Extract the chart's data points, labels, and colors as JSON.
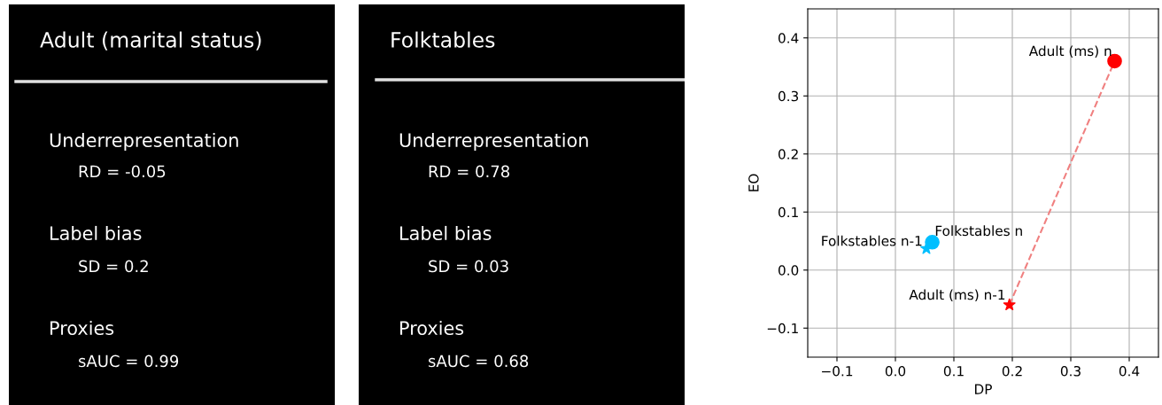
{
  "chart_data": [
    {
      "type": "other",
      "title": "Adult (marital status)",
      "annotations": [
        "Underrepresentation",
        "RD = -0.05",
        "Label bias",
        "SD = 0.2",
        "Proxies",
        "sAUC = 0.99"
      ]
    },
    {
      "type": "other",
      "title": "Folktables",
      "annotations": [
        "Underrepresentation",
        "RD = 0.78",
        "Label bias",
        "SD = 0.03",
        "Proxies",
        "sAUC = 0.68"
      ]
    },
    {
      "type": "scatter",
      "xlabel": "DP",
      "ylabel": "EO",
      "grid": true,
      "xlim": [
        -0.15,
        0.45
      ],
      "ylim": [
        -0.15,
        0.45
      ],
      "xticks": [
        {
          "value": -0.1,
          "label": "−0.1"
        },
        {
          "value": 0,
          "label": "0.0"
        },
        0.1,
        0.2,
        0.3,
        0.4
      ],
      "yticks": [
        {
          "value": -0.1,
          "label": "−0.1"
        },
        {
          "value": 0,
          "label": "0.0"
        },
        0.1,
        0.2,
        0.3,
        0.4
      ],
      "series": [
        {
          "type": "line",
          "x": [
            0.195,
            0.375
          ],
          "values": [
            -0.06,
            0.36
          ],
          "color": "#f08080",
          "line_style": "dashed",
          "marker": "none"
        },
        {
          "type": "scatter",
          "name": "Adult (ms) n",
          "x": [
            0.375
          ],
          "values": [
            0.36
          ],
          "color": "#ff0000",
          "marker": "circle"
        },
        {
          "type": "scatter",
          "name": "Adult (ms) n-1",
          "x": [
            0.195
          ],
          "values": [
            -0.06
          ],
          "color": "#ff0000",
          "marker": "star"
        },
        {
          "type": "scatter",
          "name": "Folkstables n",
          "x": [
            0.063
          ],
          "values": [
            0.048
          ],
          "color": "#00bfff",
          "marker": "circle"
        },
        {
          "type": "scatter",
          "name": "Folkstables n-1",
          "x": [
            0.053
          ],
          "values": [
            0.037
          ],
          "color": "#00bfff",
          "marker": "star"
        }
      ]
    }
  ]
}
